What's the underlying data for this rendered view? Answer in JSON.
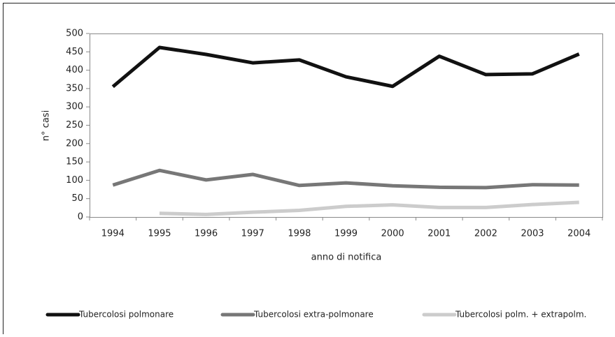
{
  "chart_data": {
    "type": "line",
    "x_label": "anno di notifica",
    "y_label": "n° casi",
    "categories": [
      "1994",
      "1995",
      "1996",
      "1997",
      "1998",
      "1999",
      "2000",
      "2001",
      "2002",
      "2003",
      "2004"
    ],
    "series": [
      {
        "name": "Tubercolosi polmonare",
        "color": "#111111",
        "values": [
          355,
          462,
          443,
          420,
          428,
          382,
          356,
          438,
          388,
          390,
          444
        ]
      },
      {
        "name": "Tubercolosi extra-polmonare",
        "color": "#777777",
        "values": [
          87,
          127,
          101,
          116,
          86,
          93,
          85,
          81,
          80,
          88,
          87
        ]
      },
      {
        "name": "Tubercolosi polm. + extrapolm.",
        "color": "#cccccc",
        "values": [
          null,
          10,
          7,
          13,
          18,
          29,
          33,
          26,
          26,
          34,
          40
        ]
      }
    ],
    "ylim": [
      0,
      500
    ],
    "yticks": [
      0,
      50,
      100,
      150,
      200,
      250,
      300,
      350,
      400,
      450,
      500
    ],
    "legend": "bottom"
  }
}
